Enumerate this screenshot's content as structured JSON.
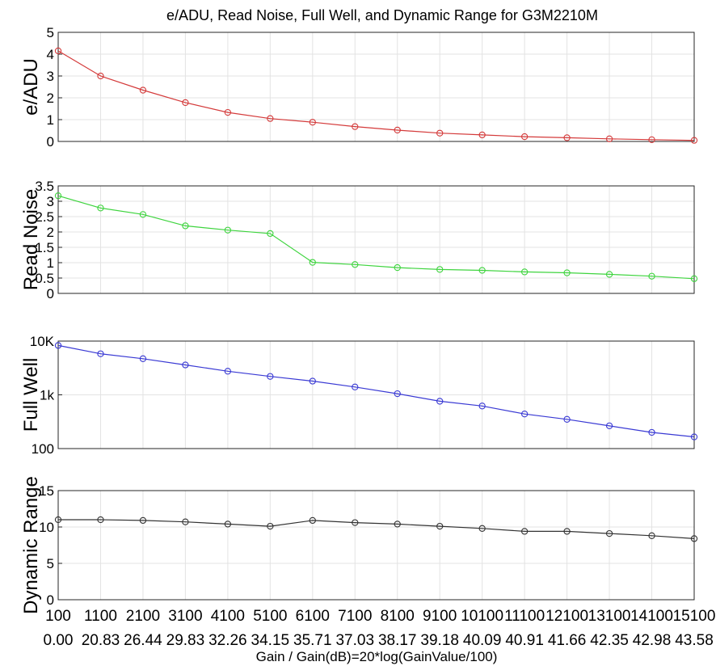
{
  "chart_data": {
    "type": "line",
    "title": "e/ADU, Read Noise, Full Well, and Dynamic Range for G3M2210M",
    "xlabel": "Gain / Gain(dB)=20*log(GainValue/100)",
    "x_gain": [
      "100",
      "1100",
      "2100",
      "3100",
      "4100",
      "5100",
      "6100",
      "7100",
      "8100",
      "9100",
      "10100",
      "11100",
      "12100",
      "13100",
      "14100",
      "15100"
    ],
    "x_gain_db": [
      "0.00",
      "20.83",
      "26.44",
      "29.83",
      "32.26",
      "34.15",
      "35.71",
      "37.03",
      "38.17",
      "39.18",
      "40.09",
      "40.91",
      "41.66",
      "42.35",
      "42.98",
      "43.58"
    ],
    "panels": [
      {
        "ylabel": "e/ADU",
        "scale": "linear",
        "ylim": [
          0,
          5
        ],
        "yticks": [
          0,
          1,
          2,
          3,
          4,
          5
        ],
        "ytick_labels": [
          "0",
          "1",
          "2",
          "3",
          "4",
          "5"
        ],
        "color": "#d43a3a",
        "values": [
          4.15,
          3.0,
          2.35,
          1.78,
          1.33,
          1.05,
          0.88,
          0.68,
          0.52,
          0.38,
          0.3,
          0.22,
          0.17,
          0.12,
          0.08,
          0.05
        ]
      },
      {
        "ylabel": "Read Noise",
        "scale": "linear",
        "ylim": [
          0,
          3.5
        ],
        "yticks": [
          0,
          0.5,
          1,
          1.5,
          2,
          2.5,
          3,
          3.5
        ],
        "ytick_labels": [
          "0",
          "0.5",
          "1",
          "1.5",
          "2",
          "2.5",
          "3",
          "3.5"
        ],
        "color": "#3ed43e",
        "values": [
          3.18,
          2.78,
          2.57,
          2.2,
          2.06,
          1.95,
          1.01,
          0.94,
          0.84,
          0.78,
          0.75,
          0.7,
          0.67,
          0.62,
          0.56,
          0.48
        ]
      },
      {
        "ylabel": "Full Well",
        "scale": "log",
        "ylim": [
          100,
          10000
        ],
        "yticks": [
          100,
          1000,
          10000
        ],
        "ytick_labels": [
          "100",
          "1k",
          "10K"
        ],
        "color": "#3a3ad4",
        "values": [
          8300,
          5800,
          4700,
          3600,
          2750,
          2200,
          1800,
          1400,
          1050,
          760,
          620,
          440,
          350,
          265,
          200,
          165
        ]
      },
      {
        "ylabel": "Dynamic Range",
        "scale": "linear",
        "ylim": [
          0,
          15
        ],
        "yticks": [
          0,
          5,
          10,
          15
        ],
        "ytick_labels": [
          "0",
          "5",
          "10",
          "15"
        ],
        "color": "#333333",
        "values": [
          11.0,
          11.0,
          10.9,
          10.7,
          10.4,
          10.1,
          10.9,
          10.6,
          10.4,
          10.1,
          9.8,
          9.4,
          9.4,
          9.1,
          8.8,
          8.4
        ]
      }
    ]
  }
}
